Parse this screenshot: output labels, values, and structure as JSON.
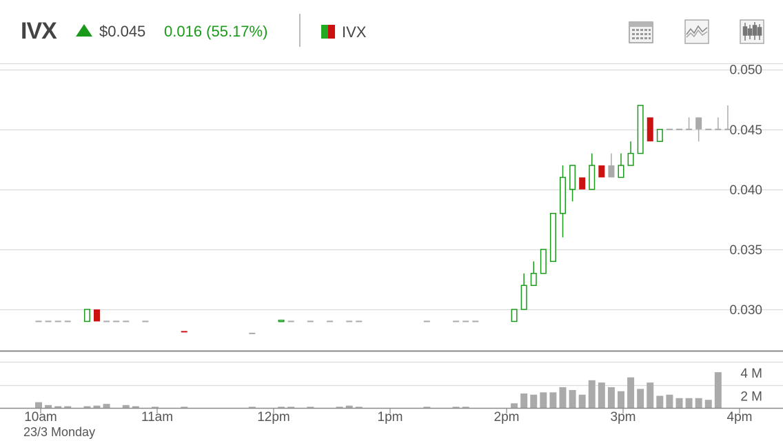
{
  "header": {
    "ticker": "IVX",
    "price": "$0.045",
    "change": "0.016 (55.17%)",
    "legend_label": "IVX",
    "up_color": "#1a9a1a",
    "down_color": "#cc1111"
  },
  "toolbar": {
    "buttons": [
      {
        "name": "calendar-icon"
      },
      {
        "name": "line-chart-icon"
      },
      {
        "name": "candlestick-icon"
      }
    ]
  },
  "date_label": "23/3 Monday",
  "chart_data": [
    {
      "type": "candlestick",
      "series_name": "IVX",
      "ylim": [
        0.0265,
        0.0505
      ],
      "y_ticks": [
        0.03,
        0.035,
        0.04,
        0.045,
        0.05
      ],
      "y_tick_labels": [
        "0.030",
        "0.035",
        "0.040",
        "0.045",
        "0.050"
      ],
      "x_domain_minutes": [
        595,
        960
      ],
      "x_ticks": [
        600,
        660,
        720,
        780,
        840,
        900,
        960
      ],
      "x_tick_labels": [
        "10am",
        "11am",
        "12pm",
        "1pm",
        "2pm",
        "3pm",
        "4pm"
      ],
      "grid": true,
      "candles": [
        {
          "t": 600,
          "o": 0.029,
          "h": 0.029,
          "l": 0.029,
          "c": 0.029
        },
        {
          "t": 605,
          "o": 0.029,
          "h": 0.029,
          "l": 0.029,
          "c": 0.029
        },
        {
          "t": 610,
          "o": 0.029,
          "h": 0.029,
          "l": 0.029,
          "c": 0.029
        },
        {
          "t": 615,
          "o": 0.029,
          "h": 0.029,
          "l": 0.029,
          "c": 0.029
        },
        {
          "t": 625,
          "o": 0.029,
          "h": 0.03,
          "l": 0.029,
          "c": 0.03
        },
        {
          "t": 630,
          "o": 0.03,
          "h": 0.03,
          "l": 0.029,
          "c": 0.029
        },
        {
          "t": 635,
          "o": 0.029,
          "h": 0.029,
          "l": 0.029,
          "c": 0.029
        },
        {
          "t": 640,
          "o": 0.029,
          "h": 0.029,
          "l": 0.029,
          "c": 0.029
        },
        {
          "t": 645,
          "o": 0.029,
          "h": 0.029,
          "l": 0.029,
          "c": 0.029
        },
        {
          "t": 655,
          "o": 0.029,
          "h": 0.029,
          "l": 0.029,
          "c": 0.029
        },
        {
          "t": 675,
          "o": 0.0282,
          "h": 0.0282,
          "l": 0.0281,
          "c": 0.0281
        },
        {
          "t": 710,
          "o": 0.028,
          "h": 0.028,
          "l": 0.028,
          "c": 0.028
        },
        {
          "t": 725,
          "o": 0.029,
          "h": 0.029,
          "l": 0.029,
          "c": 0.0291
        },
        {
          "t": 730,
          "o": 0.029,
          "h": 0.029,
          "l": 0.029,
          "c": 0.029
        },
        {
          "t": 740,
          "o": 0.029,
          "h": 0.029,
          "l": 0.029,
          "c": 0.029
        },
        {
          "t": 750,
          "o": 0.029,
          "h": 0.029,
          "l": 0.029,
          "c": 0.029
        },
        {
          "t": 760,
          "o": 0.029,
          "h": 0.029,
          "l": 0.029,
          "c": 0.029
        },
        {
          "t": 765,
          "o": 0.029,
          "h": 0.029,
          "l": 0.029,
          "c": 0.029
        },
        {
          "t": 800,
          "o": 0.029,
          "h": 0.029,
          "l": 0.029,
          "c": 0.029
        },
        {
          "t": 815,
          "o": 0.029,
          "h": 0.029,
          "l": 0.029,
          "c": 0.029
        },
        {
          "t": 820,
          "o": 0.029,
          "h": 0.029,
          "l": 0.029,
          "c": 0.029
        },
        {
          "t": 825,
          "o": 0.029,
          "h": 0.029,
          "l": 0.029,
          "c": 0.029
        },
        {
          "t": 845,
          "o": 0.029,
          "h": 0.03,
          "l": 0.029,
          "c": 0.03
        },
        {
          "t": 850,
          "o": 0.03,
          "h": 0.033,
          "l": 0.03,
          "c": 0.032
        },
        {
          "t": 855,
          "o": 0.032,
          "h": 0.034,
          "l": 0.032,
          "c": 0.033
        },
        {
          "t": 860,
          "o": 0.033,
          "h": 0.035,
          "l": 0.033,
          "c": 0.035
        },
        {
          "t": 865,
          "o": 0.034,
          "h": 0.038,
          "l": 0.034,
          "c": 0.038
        },
        {
          "t": 870,
          "o": 0.038,
          "h": 0.042,
          "l": 0.036,
          "c": 0.041
        },
        {
          "t": 875,
          "o": 0.04,
          "h": 0.042,
          "l": 0.039,
          "c": 0.042
        },
        {
          "t": 880,
          "o": 0.041,
          "h": 0.041,
          "l": 0.04,
          "c": 0.04
        },
        {
          "t": 885,
          "o": 0.04,
          "h": 0.043,
          "l": 0.04,
          "c": 0.042
        },
        {
          "t": 890,
          "o": 0.042,
          "h": 0.042,
          "l": 0.041,
          "c": 0.041
        },
        {
          "t": 895,
          "o": 0.041,
          "h": 0.043,
          "l": 0.041,
          "c": 0.042,
          "gray": true
        },
        {
          "t": 900,
          "o": 0.041,
          "h": 0.043,
          "l": 0.041,
          "c": 0.042
        },
        {
          "t": 905,
          "o": 0.042,
          "h": 0.044,
          "l": 0.042,
          "c": 0.043
        },
        {
          "t": 910,
          "o": 0.043,
          "h": 0.047,
          "l": 0.043,
          "c": 0.047
        },
        {
          "t": 915,
          "o": 0.046,
          "h": 0.046,
          "l": 0.044,
          "c": 0.044
        },
        {
          "t": 920,
          "o": 0.044,
          "h": 0.045,
          "l": 0.044,
          "c": 0.045
        },
        {
          "t": 925,
          "o": 0.045,
          "h": 0.045,
          "l": 0.045,
          "c": 0.045,
          "gray": true
        },
        {
          "t": 930,
          "o": 0.045,
          "h": 0.045,
          "l": 0.045,
          "c": 0.045,
          "gray": true
        },
        {
          "t": 935,
          "o": 0.045,
          "h": 0.046,
          "l": 0.045,
          "c": 0.045,
          "gray": true
        },
        {
          "t": 940,
          "o": 0.045,
          "h": 0.046,
          "l": 0.044,
          "c": 0.046,
          "gray": true
        },
        {
          "t": 945,
          "o": 0.045,
          "h": 0.045,
          "l": 0.045,
          "c": 0.045,
          "gray": true
        },
        {
          "t": 950,
          "o": 0.045,
          "h": 0.046,
          "l": 0.045,
          "c": 0.045,
          "gray": true
        },
        {
          "t": 955,
          "o": 0.045,
          "h": 0.047,
          "l": 0.045,
          "c": 0.045,
          "gray": true
        }
      ]
    },
    {
      "type": "bar",
      "series_name": "Volume",
      "ylim": [
        0,
        4900000
      ],
      "y_ticks": [
        2000000,
        4000000
      ],
      "y_tick_labels": [
        "2 M",
        "4 M"
      ],
      "bars": [
        {
          "t": 600,
          "v": 500000
        },
        {
          "t": 605,
          "v": 250000
        },
        {
          "t": 610,
          "v": 150000
        },
        {
          "t": 615,
          "v": 150000
        },
        {
          "t": 625,
          "v": 150000
        },
        {
          "t": 630,
          "v": 200000
        },
        {
          "t": 635,
          "v": 350000
        },
        {
          "t": 645,
          "v": 250000
        },
        {
          "t": 650,
          "v": 150000
        },
        {
          "t": 660,
          "v": 100000
        },
        {
          "t": 675,
          "v": 100000
        },
        {
          "t": 710,
          "v": 100000
        },
        {
          "t": 725,
          "v": 100000
        },
        {
          "t": 730,
          "v": 100000
        },
        {
          "t": 740,
          "v": 100000
        },
        {
          "t": 755,
          "v": 100000
        },
        {
          "t": 760,
          "v": 200000
        },
        {
          "t": 765,
          "v": 100000
        },
        {
          "t": 800,
          "v": 100000
        },
        {
          "t": 815,
          "v": 100000
        },
        {
          "t": 820,
          "v": 100000
        },
        {
          "t": 845,
          "v": 400000
        },
        {
          "t": 850,
          "v": 1250000
        },
        {
          "t": 855,
          "v": 1150000
        },
        {
          "t": 860,
          "v": 1350000
        },
        {
          "t": 865,
          "v": 1350000
        },
        {
          "t": 870,
          "v": 1800000
        },
        {
          "t": 875,
          "v": 1550000
        },
        {
          "t": 880,
          "v": 1150000
        },
        {
          "t": 885,
          "v": 2400000
        },
        {
          "t": 890,
          "v": 2200000
        },
        {
          "t": 895,
          "v": 1800000
        },
        {
          "t": 900,
          "v": 1450000
        },
        {
          "t": 905,
          "v": 2650000
        },
        {
          "t": 910,
          "v": 1650000
        },
        {
          "t": 915,
          "v": 2200000
        },
        {
          "t": 920,
          "v": 1050000
        },
        {
          "t": 925,
          "v": 1150000
        },
        {
          "t": 930,
          "v": 850000
        },
        {
          "t": 935,
          "v": 850000
        },
        {
          "t": 940,
          "v": 850000
        },
        {
          "t": 945,
          "v": 700000
        },
        {
          "t": 950,
          "v": 3100000
        }
      ]
    }
  ]
}
